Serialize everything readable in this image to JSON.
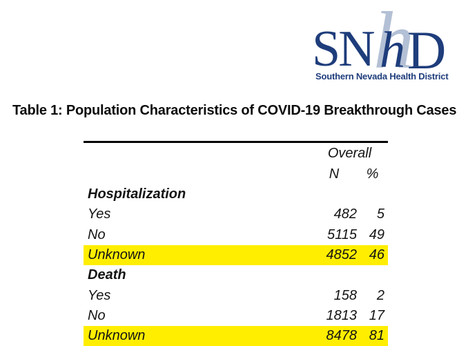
{
  "colors": {
    "navy": "#1e3d7b",
    "light_blue": "#b3c0d5",
    "highlight_yellow": "#ffee00"
  },
  "logo": {
    "sn": "SN",
    "h_light": "h",
    "h_dark": "h",
    "d": "D",
    "tagline": "Southern Nevada Health District"
  },
  "title": "Table 1: Population Characteristics of COVID-19 Breakthrough Cases",
  "table": {
    "group_header": "Overall",
    "columns": [
      "N",
      "%"
    ],
    "rows": [
      {
        "label": "Hospitalization",
        "n": "",
        "pct": "",
        "type": "section",
        "highlight": false
      },
      {
        "label": "Yes",
        "n": "482",
        "pct": "5",
        "type": "data",
        "highlight": false
      },
      {
        "label": "No",
        "n": "5115",
        "pct": "49",
        "type": "data",
        "highlight": false
      },
      {
        "label": "Unknown",
        "n": "4852",
        "pct": "46",
        "type": "data",
        "highlight": true
      },
      {
        "label": "Death",
        "n": "",
        "pct": "",
        "type": "section",
        "highlight": false
      },
      {
        "label": "Yes",
        "n": "158",
        "pct": "2",
        "type": "data",
        "highlight": false
      },
      {
        "label": "No",
        "n": "1813",
        "pct": "17",
        "type": "data",
        "highlight": false
      },
      {
        "label": "Unknown",
        "n": "8478",
        "pct": "81",
        "type": "data",
        "highlight": true
      }
    ]
  }
}
